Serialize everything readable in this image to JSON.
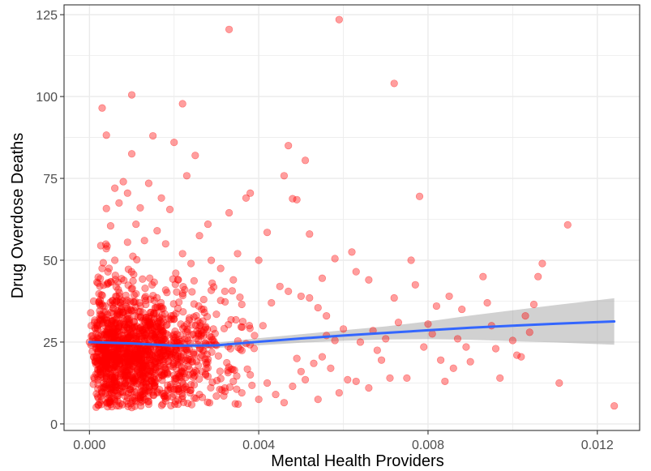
{
  "chart_data": {
    "type": "scatter",
    "title": "",
    "xlabel": "Mental Health Providers",
    "ylabel": "Drug Overdose Deaths",
    "xlim": [
      -0.0006,
      0.013
    ],
    "ylim": [
      -2,
      128
    ],
    "x_ticks": [
      0.0,
      0.004,
      0.008,
      0.012
    ],
    "x_tick_labels": [
      "0.000",
      "0.004",
      "0.008",
      "0.012"
    ],
    "y_ticks": [
      0,
      25,
      50,
      75,
      100,
      125
    ],
    "y_tick_labels": [
      "0",
      "25",
      "50",
      "75",
      "100",
      "125"
    ],
    "grid": true,
    "legend": "none",
    "colors": {
      "points": "#ff0000",
      "smooth_line": "#3366ff",
      "ribbon": "#999999",
      "grid": "#ebebeb",
      "panel_border": "#333333"
    },
    "series": [
      {
        "type": "scatter",
        "points": [
          [
            0.0003,
            96.5
          ],
          [
            0.001,
            100.5
          ],
          [
            0.0022,
            97.8
          ],
          [
            0.0004,
            88.2
          ],
          [
            0.0015,
            88.0
          ],
          [
            0.002,
            86.0
          ],
          [
            0.0025,
            82.0
          ],
          [
            0.001,
            82.5
          ],
          [
            0.0008,
            74.0
          ],
          [
            0.0014,
            73.5
          ],
          [
            0.0023,
            75.8
          ],
          [
            0.0006,
            72.0
          ],
          [
            0.0009,
            70.5
          ],
          [
            0.0012,
            66.0
          ],
          [
            0.0004,
            65.8
          ],
          [
            0.0007,
            67.5
          ],
          [
            0.0017,
            69.0
          ],
          [
            0.0019,
            65.5
          ],
          [
            0.0011,
            61.0
          ],
          [
            0.0005,
            60.5
          ],
          [
            0.0028,
            61.0
          ],
          [
            0.0033,
            64.5
          ],
          [
            0.0037,
            69.0
          ],
          [
            0.0038,
            70.5
          ],
          [
            0.0042,
            58.5
          ],
          [
            0.0046,
            75.8
          ],
          [
            0.0047,
            85.0
          ],
          [
            0.0048,
            68.8
          ],
          [
            0.0049,
            68.5
          ],
          [
            0.0051,
            80.5
          ],
          [
            0.0052,
            58.0
          ],
          [
            0.0058,
            50.5
          ],
          [
            0.0062,
            52.5
          ],
          [
            0.0063,
            46.5
          ],
          [
            0.0066,
            44.0
          ],
          [
            0.0072,
            38.5
          ],
          [
            0.0076,
            50.0
          ],
          [
            0.0077,
            42.5
          ],
          [
            0.0078,
            69.5
          ],
          [
            0.0082,
            36.0
          ],
          [
            0.0085,
            39.0
          ],
          [
            0.0088,
            35.0
          ],
          [
            0.0093,
            45.0
          ],
          [
            0.0094,
            37.0
          ],
          [
            0.0103,
            33.0
          ],
          [
            0.0105,
            36.5
          ],
          [
            0.0107,
            49.0
          ],
          [
            0.0106,
            45.0
          ],
          [
            0.0113,
            60.8
          ],
          [
            0.0033,
            120.5
          ],
          [
            0.0059,
            123.5
          ],
          [
            0.0072,
            104.0
          ],
          [
            0.0111,
            12.5
          ],
          [
            0.0124,
            5.5
          ],
          [
            0.0097,
            14.0
          ],
          [
            0.0101,
            21.0
          ],
          [
            0.0102,
            20.5
          ],
          [
            0.0096,
            23.0
          ],
          [
            0.009,
            19.0
          ],
          [
            0.0089,
            23.5
          ],
          [
            0.0083,
            19.5
          ],
          [
            0.0084,
            13.0
          ],
          [
            0.0086,
            17.0
          ],
          [
            0.0079,
            23.5
          ],
          [
            0.0075,
            14.0
          ],
          [
            0.0071,
            14.0
          ],
          [
            0.0069,
            19.5
          ],
          [
            0.0068,
            22.5
          ],
          [
            0.0066,
            11.0
          ],
          [
            0.0063,
            13.0
          ],
          [
            0.0061,
            13.5
          ],
          [
            0.0058,
            25.5
          ],
          [
            0.0059,
            9.5
          ],
          [
            0.0057,
            17.0
          ],
          [
            0.0055,
            20.5
          ],
          [
            0.0053,
            18.5
          ],
          [
            0.0051,
            13.5
          ],
          [
            0.005,
            16.0
          ],
          [
            0.0048,
            11.5
          ],
          [
            0.0046,
            6.5
          ],
          [
            0.0044,
            9.0
          ],
          [
            0.0054,
            7.5
          ],
          [
            0.0043,
            37.0
          ],
          [
            0.0045,
            42.0
          ],
          [
            0.0047,
            40.5
          ],
          [
            0.005,
            39.0
          ],
          [
            0.0052,
            38.5
          ],
          [
            0.0054,
            35.5
          ],
          [
            0.0055,
            44.5
          ],
          [
            0.0056,
            33.0
          ],
          [
            0.004,
            50.0
          ],
          [
            0.0041,
            30.0
          ],
          [
            0.0039,
            27.0
          ],
          [
            0.0036,
            36.5
          ],
          [
            0.0035,
            52.0
          ],
          [
            0.0034,
            44.0
          ],
          [
            0.0032,
            40.5
          ],
          [
            0.0031,
            47.5
          ],
          [
            0.003,
            33.5
          ],
          [
            0.0029,
            43.0
          ],
          [
            0.0027,
            38.0
          ],
          [
            0.0026,
            57.5
          ],
          [
            0.0024,
            49.0
          ],
          [
            0.0022,
            52.0
          ],
          [
            0.0021,
            44.0
          ],
          [
            0.0018,
            55.0
          ],
          [
            0.0016,
            59.0
          ],
          [
            0.0013,
            56.0
          ],
          [
            0.0009,
            55.5
          ],
          [
            0.0006,
            50.0
          ],
          [
            0.0003,
            47.5
          ],
          [
            0.0002,
            43.0
          ],
          [
            0.0001,
            37.5
          ],
          [
            0.0,
            25.0
          ],
          [
            0.0001,
            20.5
          ],
          [
            0.0002,
            30.0
          ],
          [
            0.0002,
            15.5
          ],
          [
            0.0003,
            9.5
          ],
          [
            0.0004,
            12.0
          ],
          [
            0.0005,
            6.0
          ],
          [
            0.0007,
            5.5
          ],
          [
            0.0009,
            8.0
          ],
          [
            0.001,
            5.0
          ],
          [
            0.0012,
            7.5
          ],
          [
            0.0014,
            6.0
          ],
          [
            0.0016,
            9.5
          ],
          [
            0.0018,
            7.0
          ],
          [
            0.002,
            10.5
          ],
          [
            0.0022,
            8.5
          ],
          [
            0.0024,
            12.0
          ],
          [
            0.0026,
            9.0
          ],
          [
            0.0028,
            14.5
          ],
          [
            0.003,
            8.5
          ],
          [
            0.0032,
            11.0
          ],
          [
            0.0034,
            13.0
          ],
          [
            0.0036,
            9.5
          ],
          [
            0.0038,
            15.0
          ],
          [
            0.004,
            7.5
          ],
          [
            0.0042,
            12.5
          ],
          [
            0.0049,
            20.0
          ],
          [
            0.0056,
            27.0
          ],
          [
            0.006,
            29.0
          ],
          [
            0.0064,
            25.0
          ],
          [
            0.0067,
            28.5
          ],
          [
            0.007,
            26.0
          ],
          [
            0.0073,
            31.0
          ],
          [
            0.008,
            30.5
          ],
          [
            0.0081,
            27.5
          ],
          [
            0.0087,
            26.0
          ],
          [
            0.0095,
            30.0
          ],
          [
            0.01,
            25.5
          ],
          [
            0.0104,
            28.0
          ]
        ]
      },
      {
        "type": "smooth_line",
        "points": [
          [
            0.0,
            25.0
          ],
          [
            0.001,
            24.6
          ],
          [
            0.002,
            23.9
          ],
          [
            0.003,
            24.0
          ],
          [
            0.004,
            25.1
          ],
          [
            0.005,
            26.1
          ],
          [
            0.006,
            27.0
          ],
          [
            0.007,
            27.8
          ],
          [
            0.008,
            28.6
          ],
          [
            0.009,
            29.4
          ],
          [
            0.01,
            30.0
          ],
          [
            0.011,
            30.6
          ],
          [
            0.0124,
            31.3
          ]
        ]
      },
      {
        "type": "confidence_band",
        "points": [
          [
            0.0,
            23.5,
            26.5
          ],
          [
            0.001,
            23.9,
            25.3
          ],
          [
            0.002,
            23.2,
            24.6
          ],
          [
            0.003,
            23.2,
            24.8
          ],
          [
            0.004,
            24.0,
            26.2
          ],
          [
            0.005,
            24.8,
            27.4
          ],
          [
            0.006,
            25.4,
            28.6
          ],
          [
            0.007,
            25.8,
            29.8
          ],
          [
            0.008,
            25.9,
            31.3
          ],
          [
            0.009,
            25.7,
            33.1
          ],
          [
            0.01,
            25.3,
            34.7
          ],
          [
            0.011,
            24.9,
            36.3
          ],
          [
            0.0124,
            24.2,
            38.4
          ]
        ]
      }
    ],
    "dense_cluster": {
      "note": "",
      "x_range": [
        0.0,
        0.004
      ],
      "y_range": [
        5,
        50
      ],
      "count": 1400
    }
  }
}
